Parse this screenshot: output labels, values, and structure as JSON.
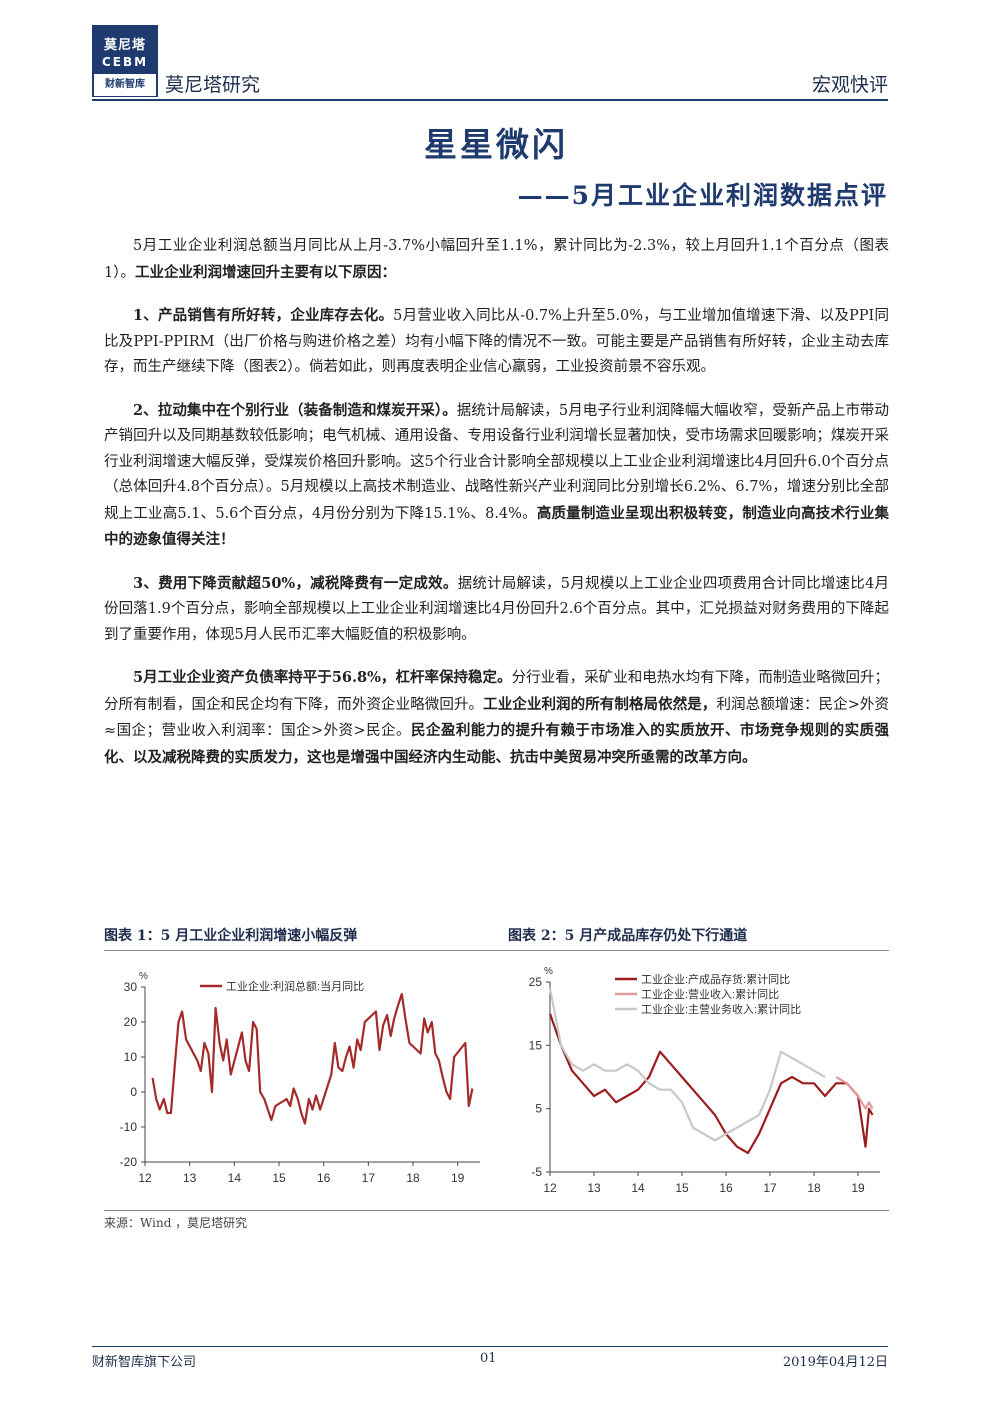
{
  "header": {
    "logo_cn": "莫尼塔",
    "logo_en": "CEBM",
    "logo_sub": "财新智库",
    "brand": "莫尼塔研究",
    "doc_type": "宏观快评"
  },
  "title": "星星微闪",
  "subtitle": "——5月工业企业利润数据点评",
  "paragraphs": {
    "p1a": "5月工业企业利润总额当月同比从上月-3.7%小幅回升至1.1%，累计同比为-2.3%，较上月回升1.1个百分点（图表1）。",
    "p1b": "工业企业利润增速回升主要有以下原因：",
    "p2a": "1、产品销售有所好转，企业库存去化。",
    "p2b": "5月营业收入同比从-0.7%上升至5.0%，与工业增加值增速下滑、以及PPI同比及PPI-PPIRM（出厂价格与购进价格之差）均有小幅下降的情况不一致。可能主要是产品销售有所好转，企业主动去库存，而生产继续下降（图表2）。倘若如此，则再度表明企业信心羸弱，工业投资前景不容乐观。",
    "p3a": "2、拉动集中在个别行业（装备制造和煤炭开采）。",
    "p3b": "据统计局解读，5月电子行业利润降幅大幅收窄，受新产品上市带动产销回升以及同期基数较低影响；电气机械、通用设备、专用设备行业利润增长显著加快，受市场需求回暖影响；煤炭开采行业利润增速大幅反弹，受煤炭价格回升影响。这5个行业合计影响全部规模以上工业企业利润增速比4月回升6.0个百分点（总体回升4.8个百分点）。5月规模以上高技术制造业、战略性新兴产业利润同比分别增长6.2%、6.7%，增速分别比全部规上工业高5.1、5.6个百分点，4月份分别为下降15.1%、8.4%。",
    "p3c": "高质量制造业呈现出积极转变，制造业向高技术行业集中的迹象值得关注！",
    "p4a": "3、费用下降贡献超50%，减税降费有一定成效。",
    "p4b": "据统计局解读，5月规模以上工业企业四项费用合计同比增速比4月份回落1.9个百分点，影响全部规模以上工业企业利润增速比4月份回升2.6个百分点。其中，汇兑损益对财务费用的下降起到了重要作用，体现5月人民币汇率大幅贬值的积极影响。",
    "p5a": "5月工业企业资产负债率持平于56.8%，杠杆率保持稳定。",
    "p5b": "分行业看，采矿业和电热水均有下降，而制造业略微回升；分所有制看，国企和民企均有下降，而外资企业略微回升。",
    "p5c": "工业企业利润的所有制格局依然是，",
    "p5d": "利润总额增速：民企>外资≈国企；营业收入利润率：国企>外资>民企。",
    "p5e": "民企盈利能力的提升有赖于市场准入的实质放开、市场竞争规则的实质强化、以及减税降费的实质发力，这也是增强中国经济内生动能、抗击中美贸易冲突所亟需的改革方向。"
  },
  "figures": {
    "fig1_title": "图表 1：5 月工业企业利润增速小幅反弹",
    "fig2_title": "图表 2：5 月产成品库存仍处下行通道",
    "source": "来源：Wind ，莫尼塔研究"
  },
  "chart_data": [
    {
      "type": "line",
      "ylabel": "%",
      "ylim": [
        -20,
        30
      ],
      "yticks": [
        "30",
        "20",
        "10",
        "0",
        "-10",
        "-20"
      ],
      "ytick_values": [
        30,
        20,
        10,
        0,
        -10,
        -20
      ],
      "xlim": [
        2012,
        2019.5
      ],
      "xticks": [
        "12",
        "13",
        "14",
        "15",
        "16",
        "17",
        "18",
        "19"
      ],
      "xtick_values": [
        2012,
        2013,
        2014,
        2015,
        2016,
        2017,
        2018,
        2019
      ],
      "legend_position": "top",
      "colors": [
        "#a52a2a"
      ],
      "series": [
        {
          "name": "工业企业:利润总额:当月同比",
          "x": [
            2012.17,
            2012.25,
            2012.33,
            2012.42,
            2012.5,
            2012.58,
            2012.67,
            2012.75,
            2012.83,
            2012.92,
            2013.17,
            2013.25,
            2013.33,
            2013.42,
            2013.5,
            2013.58,
            2013.67,
            2013.75,
            2013.83,
            2013.92,
            2014.17,
            2014.25,
            2014.33,
            2014.42,
            2014.5,
            2014.58,
            2014.67,
            2014.75,
            2014.83,
            2014.92,
            2015.17,
            2015.25,
            2015.33,
            2015.42,
            2015.5,
            2015.58,
            2015.67,
            2015.75,
            2015.83,
            2015.92,
            2016.17,
            2016.25,
            2016.33,
            2016.42,
            2016.5,
            2016.58,
            2016.67,
            2016.75,
            2016.83,
            2016.92,
            2017.17,
            2017.25,
            2017.33,
            2017.42,
            2017.5,
            2017.58,
            2017.67,
            2017.75,
            2017.83,
            2017.92,
            2018.17,
            2018.25,
            2018.33,
            2018.42,
            2018.5,
            2018.58,
            2018.67,
            2018.75,
            2018.83,
            2018.92,
            2019.17,
            2019.25,
            2019.33
          ],
          "values": [
            4,
            -2,
            -5,
            -2,
            -6,
            -6,
            8,
            20,
            23,
            15,
            9,
            6,
            14,
            11,
            0,
            24,
            14,
            9,
            15,
            5,
            17,
            9,
            6,
            20,
            18,
            0,
            -2,
            -5,
            -8,
            -4,
            -2,
            -4,
            1,
            -2,
            -6,
            -9,
            -2,
            -5,
            -1,
            -5,
            5,
            14,
            7,
            6,
            10,
            13,
            7,
            15,
            12,
            20,
            23,
            12,
            19,
            22,
            16,
            21,
            25,
            28,
            21,
            14,
            11,
            21,
            17,
            20,
            11,
            9,
            4,
            0,
            -2,
            10,
            14,
            -4,
            1
          ]
        }
      ]
    },
    {
      "type": "line",
      "ylabel": "%",
      "ylim": [
        -5,
        25
      ],
      "yticks": [
        "25",
        "15",
        "5",
        "-5"
      ],
      "ytick_values": [
        25,
        15,
        5,
        -5
      ],
      "xlim": [
        2012,
        2019.5
      ],
      "xticks": [
        "12",
        "13",
        "14",
        "15",
        "16",
        "17",
        "18",
        "19"
      ],
      "xtick_values": [
        2012,
        2013,
        2014,
        2015,
        2016,
        2017,
        2018,
        2019
      ],
      "legend_position": "top",
      "colors": [
        "#9b1c1c",
        "#e39a9a",
        "#c8c8c8"
      ],
      "series": [
        {
          "name": "工业企业:产成品存货:累计同比",
          "x": [
            2012.0,
            2012.25,
            2012.5,
            2012.75,
            2013.0,
            2013.25,
            2013.5,
            2013.75,
            2014.0,
            2014.25,
            2014.5,
            2014.75,
            2015.0,
            2015.25,
            2015.5,
            2015.75,
            2016.0,
            2016.25,
            2016.5,
            2016.75,
            2017.0,
            2017.25,
            2017.5,
            2017.75,
            2018.0,
            2018.25,
            2018.5,
            2018.75,
            2019.0,
            2019.17,
            2019.25,
            2019.33
          ],
          "values": [
            20,
            15,
            11,
            9,
            7,
            8,
            6,
            7,
            8,
            10,
            14,
            12,
            10,
            8,
            6,
            4,
            1,
            -1,
            -2,
            1,
            5,
            9,
            10,
            9,
            9,
            7,
            9,
            9,
            7,
            -1,
            5,
            4
          ]
        },
        {
          "name": "工业企业:营业收入:累计同比",
          "x": [
            2018.5,
            2018.75,
            2019.0,
            2019.17,
            2019.25,
            2019.33
          ],
          "values": [
            10,
            9,
            7,
            5,
            6,
            5
          ]
        },
        {
          "name": "工业企业:主营业务收入:累计同比",
          "x": [
            2012.0,
            2012.25,
            2012.5,
            2012.75,
            2013.0,
            2013.25,
            2013.5,
            2013.75,
            2014.0,
            2014.25,
            2014.5,
            2014.75,
            2015.0,
            2015.25,
            2015.5,
            2015.75,
            2016.0,
            2016.25,
            2016.5,
            2016.75,
            2017.0,
            2017.25,
            2017.5,
            2017.75,
            2018.0,
            2018.25
          ],
          "values": [
            24,
            15,
            12,
            11,
            12,
            11,
            11,
            12,
            11,
            9,
            8,
            8,
            6,
            2,
            1,
            0,
            1,
            2,
            3,
            4,
            8,
            14,
            13,
            12,
            11,
            10
          ]
        }
      ]
    }
  ],
  "footer": {
    "left": "财新智库旗下公司",
    "center": "01",
    "right": "2019年04月12日"
  }
}
